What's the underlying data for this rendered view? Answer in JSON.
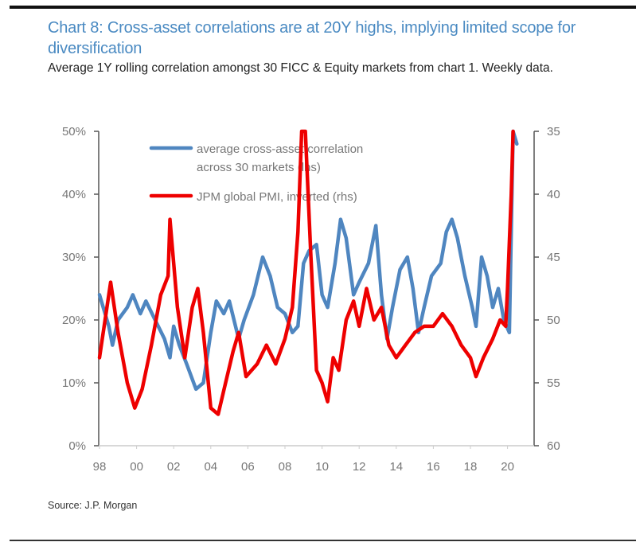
{
  "header": {
    "title": "Chart 8: Cross-asset correlations are at 20Y highs, implying limited scope for diversification",
    "subtitle": "Average 1Y rolling correlation amongst 30 FICC & Equity markets from chart 1. Weekly data."
  },
  "footer": {
    "source": "Source: J.P. Morgan"
  },
  "colors": {
    "blue": "#4f86c0",
    "red": "#ee0000",
    "title": "#4a8ac2",
    "axis": "#555555"
  },
  "chart_data": {
    "type": "line",
    "title": "Chart 8: Cross-asset correlations are at 20Y highs, implying limited scope for diversification",
    "subtitle": "Average 1Y rolling correlation amongst 30 FICC & Equity markets from chart 1. Weekly data.",
    "xlabel": "",
    "x_ticks": [
      "98",
      "00",
      "02",
      "04",
      "06",
      "08",
      "10",
      "12",
      "14",
      "16",
      "18",
      "20"
    ],
    "x_tick_years": [
      1998,
      2000,
      2002,
      2004,
      2006,
      2008,
      2010,
      2012,
      2014,
      2016,
      2018,
      2020
    ],
    "xlim": [
      1998,
      2021.4
    ],
    "y_left": {
      "label": "",
      "ticks": [
        "0%",
        "10%",
        "20%",
        "30%",
        "40%",
        "50%"
      ],
      "tick_values": [
        0,
        10,
        20,
        30,
        40,
        50
      ],
      "ylim": [
        0,
        50
      ]
    },
    "y_right": {
      "label": "",
      "ticks": [
        "35",
        "40",
        "45",
        "50",
        "55",
        "60"
      ],
      "tick_values": [
        35,
        40,
        45,
        50,
        55,
        60
      ],
      "ylim": [
        35,
        60
      ],
      "inverted": true
    },
    "grid": false,
    "legend_position": "top-center",
    "series": [
      {
        "name": "average cross-asset correlation across 30 markets (lhs)",
        "legend_lines": [
          "average cross-asset correlation",
          "across 30 markets (lhs)"
        ],
        "axis": "left",
        "color": "#4f86c0",
        "x": [
          1998.0,
          1998.5,
          1998.7,
          1999.0,
          1999.5,
          1999.8,
          2000.2,
          2000.5,
          2001.0,
          2001.5,
          2001.8,
          2002.0,
          2002.3,
          2002.7,
          2003.2,
          2003.6,
          2004.0,
          2004.3,
          2004.7,
          2005.0,
          2005.5,
          2005.8,
          2006.3,
          2006.8,
          2007.2,
          2007.6,
          2008.0,
          2008.4,
          2008.7,
          2009.0,
          2009.3,
          2009.7,
          2010.0,
          2010.3,
          2010.7,
          2011.0,
          2011.3,
          2011.7,
          2012.0,
          2012.5,
          2012.9,
          2013.2,
          2013.5,
          2013.8,
          2014.2,
          2014.6,
          2014.9,
          2015.2,
          2015.5,
          2015.9,
          2016.4,
          2016.7,
          2017.0,
          2017.3,
          2017.7,
          2018.1,
          2018.3,
          2018.6,
          2018.9,
          2019.2,
          2019.5,
          2019.8,
          2020.1,
          2020.3,
          2020.5
        ],
        "values": [
          24,
          19,
          16,
          20,
          22,
          24,
          21,
          23,
          20,
          17,
          14,
          19,
          16,
          13,
          9,
          10,
          18,
          23,
          21,
          23,
          17,
          20,
          24,
          30,
          27,
          22,
          21,
          18,
          19,
          29,
          31,
          32,
          24,
          22,
          29,
          36,
          33,
          24,
          26,
          29,
          35,
          24,
          17,
          22,
          28,
          30,
          25,
          18,
          22,
          27,
          29,
          34,
          36,
          33,
          27,
          22,
          19,
          30,
          27,
          22,
          25,
          20,
          18,
          50,
          48
        ]
      },
      {
        "name": "JPM global PMI, inverted (rhs)",
        "legend_lines": [
          "JPM global PMI, inverted (rhs)"
        ],
        "axis": "right",
        "color": "#ee0000",
        "x": [
          1998.0,
          1998.6,
          1999.0,
          1999.5,
          1999.9,
          2000.3,
          2000.8,
          2001.3,
          2001.7,
          2001.8,
          2002.2,
          2002.6,
          2003.0,
          2003.3,
          2003.6,
          2004.0,
          2004.4,
          2004.8,
          2005.2,
          2005.5,
          2005.9,
          2006.5,
          2007.0,
          2007.5,
          2008.0,
          2008.4,
          2008.7,
          2008.9,
          2009.1,
          2009.4,
          2009.7,
          2010.0,
          2010.3,
          2010.6,
          2010.9,
          2011.3,
          2011.7,
          2012.0,
          2012.4,
          2012.8,
          2013.2,
          2013.6,
          2014.0,
          2014.5,
          2015.0,
          2015.5,
          2016.0,
          2016.5,
          2017.0,
          2017.5,
          2018.0,
          2018.3,
          2018.7,
          2019.2,
          2019.6,
          2019.9,
          2020.0,
          2020.2,
          2020.3
        ],
        "values": [
          53,
          47,
          51,
          55,
          57,
          55.5,
          52,
          48,
          46.5,
          42,
          49,
          53,
          49,
          47.5,
          51,
          57,
          57.5,
          55,
          52.5,
          51,
          54.5,
          53.5,
          52,
          53.5,
          51.5,
          49,
          43,
          35,
          35,
          45,
          54,
          55,
          56.5,
          53,
          54,
          50,
          48.5,
          50.5,
          47.5,
          50,
          49,
          52,
          53,
          52,
          51,
          50.5,
          50.5,
          49.5,
          50.5,
          52,
          53,
          54.5,
          53,
          51.5,
          50,
          50.5,
          47.5,
          40,
          35
        ]
      }
    ]
  }
}
